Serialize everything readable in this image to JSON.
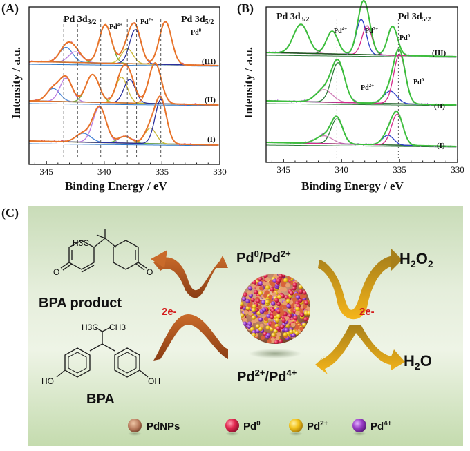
{
  "panels": {
    "A": {
      "label": "(A)"
    },
    "B": {
      "label": "(B)"
    },
    "C": {
      "label": "(C)"
    }
  },
  "chart_data": [
    {
      "type": "line",
      "panel": "A",
      "xlabel": "Binding Energy / eV",
      "ylabel": "Intensity / a.u.",
      "xlim": [
        346.5,
        330
      ],
      "x_reversed": true,
      "xticks": [
        345,
        340,
        335,
        330
      ],
      "annotations": {
        "pd3d32": "Pd 3d3/2",
        "pd3d52": "Pd 3d5/2",
        "pd4": "Pd4+",
        "pd2": "Pd2+",
        "pd0": "Pd0"
      },
      "trace_labels": [
        "(III)",
        "(II)",
        "(I)"
      ],
      "reference_lines_eV": [
        343.5,
        342.3,
        340.3,
        338.0,
        337.2,
        335.1
      ],
      "peaks_eV": {
        "III": [
          {
            "center": 343.3,
            "height": 0.35,
            "width": 0.8
          },
          {
            "center": 342.5,
            "height": 0.25,
            "width": 0.8
          },
          {
            "center": 339.9,
            "height": 0.9,
            "width": 0.75
          },
          {
            "center": 338.0,
            "height": 0.35,
            "width": 0.7
          },
          {
            "center": 337.3,
            "height": 0.8,
            "width": 0.7
          },
          {
            "center": 334.7,
            "height": 1.0,
            "width": 0.75
          }
        ],
        "II": [
          {
            "center": 344.4,
            "height": 0.3,
            "width": 0.8
          },
          {
            "center": 343.3,
            "height": 0.55,
            "width": 0.75
          },
          {
            "center": 341.0,
            "height": 0.65,
            "width": 0.8
          },
          {
            "center": 338.5,
            "height": 0.6,
            "width": 0.7
          },
          {
            "center": 337.8,
            "height": 0.55,
            "width": 0.7
          },
          {
            "center": 335.6,
            "height": 0.95,
            "width": 0.75
          }
        ],
        "I": [
          {
            "center": 341.8,
            "height": 0.2,
            "width": 0.9
          },
          {
            "center": 340.4,
            "height": 0.8,
            "width": 0.8
          },
          {
            "center": 338.2,
            "height": 0.15,
            "width": 0.8
          },
          {
            "center": 336.0,
            "height": 0.35,
            "width": 0.7
          },
          {
            "center": 335.1,
            "height": 1.0,
            "width": 0.7
          }
        ]
      }
    },
    {
      "type": "line",
      "panel": "B",
      "xlabel": "Binding Energy / eV",
      "ylabel": "Intensity / a.u.",
      "xlim": [
        346.5,
        330
      ],
      "x_reversed": true,
      "xticks": [
        345,
        340,
        335,
        330
      ],
      "annotations": {
        "pd3d32": "Pd 3d3/2",
        "pd3d52": "Pd 3d5/2",
        "pd4": "Pd4+",
        "pd2": "Pd2+",
        "pd0": "Pd0"
      },
      "trace_labels": [
        "(III)",
        "(II)",
        "(I)"
      ],
      "reference_lines_eV": [
        340.4,
        335.1
      ],
      "peaks_eV": {
        "III": [
          {
            "center": 343.5,
            "height": 0.7,
            "width": 0.9
          },
          {
            "center": 340.8,
            "height": 0.55,
            "width": 0.7
          },
          {
            "center": 338.3,
            "height": 0.85,
            "width": 0.6
          },
          {
            "center": 337.8,
            "height": 0.7,
            "width": 0.6
          },
          {
            "center": 335.6,
            "height": 0.7,
            "width": 0.6
          }
        ],
        "II": [
          {
            "center": 341.5,
            "height": 0.25,
            "width": 1.0
          },
          {
            "center": 340.3,
            "height": 0.8,
            "width": 0.8
          },
          {
            "center": 335.8,
            "height": 0.25,
            "width": 0.8
          },
          {
            "center": 335.0,
            "height": 1.0,
            "width": 0.7
          }
        ],
        "I": [
          {
            "center": 341.5,
            "height": 0.2,
            "width": 1.0
          },
          {
            "center": 340.4,
            "height": 0.65,
            "width": 0.7
          },
          {
            "center": 336.0,
            "height": 0.25,
            "width": 0.7
          },
          {
            "center": 335.2,
            "height": 0.8,
            "width": 0.7
          }
        ]
      }
    }
  ],
  "scheme": {
    "bpa_product_label": "BPA product",
    "bpa_label": "BPA",
    "h3c": "H3C",
    "ch3": "CH3",
    "o_left": "O",
    "o_right": "O",
    "ho": "HO",
    "oh": "OH",
    "pd0_pd2": "Pd0/Pd2+",
    "pd2_pd4": "Pd2+/Pd4+",
    "h2o2": "H2O2",
    "h2o": "H2O",
    "electrons_left": "2e-",
    "electrons_right": "2e-",
    "legend": [
      {
        "name": "PdNPs",
        "color": "#b5785a"
      },
      {
        "name": "Pd0",
        "color": "#e0284f"
      },
      {
        "name": "Pd2+",
        "color": "#f2c21b"
      },
      {
        "name": "Pd4+",
        "color": "#9a3ec8"
      }
    ]
  }
}
